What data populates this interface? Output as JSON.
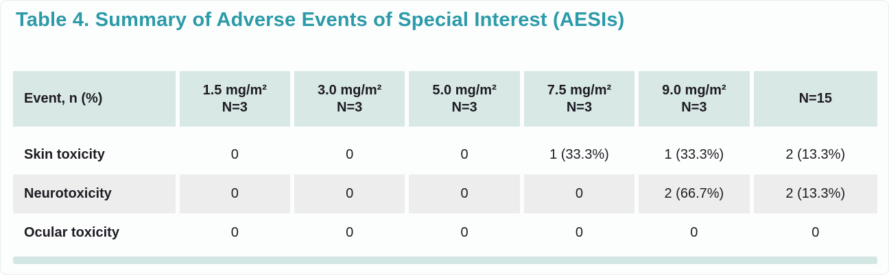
{
  "title": "Table 4. Summary of Adverse Events of Special Interest (AESIs)",
  "chart_data": {
    "type": "table",
    "title": "Table 4. Summary of Adverse Events of Special Interest (AESIs)",
    "columns": [
      {
        "label": "Event, n (%)",
        "sublabel": ""
      },
      {
        "label": "1.5 mg/m²",
        "sublabel": "N=3"
      },
      {
        "label": "3.0 mg/m²",
        "sublabel": "N=3"
      },
      {
        "label": "5.0 mg/m²",
        "sublabel": "N=3"
      },
      {
        "label": "7.5 mg/m²",
        "sublabel": "N=3"
      },
      {
        "label": "9.0 mg/m²",
        "sublabel": "N=3"
      },
      {
        "label": "N=15",
        "sublabel": ""
      }
    ],
    "rows": [
      {
        "event": "Skin toxicity",
        "values": [
          "0",
          "0",
          "0",
          "1 (33.3%)",
          "1 (33.3%)",
          "2 (13.3%)"
        ]
      },
      {
        "event": "Neurotoxicity",
        "values": [
          "0",
          "0",
          "0",
          "0",
          "2 (66.7%)",
          "2 (13.3%)"
        ]
      },
      {
        "event": "Ocular toxicity",
        "values": [
          "0",
          "0",
          "0",
          "0",
          "0",
          "0"
        ]
      }
    ],
    "layout_hints": {
      "alt_shaded_rows": [
        1
      ],
      "header_shaded": true,
      "grid": "off"
    }
  },
  "colors": {
    "title_text": "#2B9AA9",
    "header_cell_bg": "#D7E8E5",
    "alt_row_bg": "#EDEDED",
    "footer_bar_bg": "#D2E6E3",
    "body_text": "#1E1B22",
    "card_bg": "#FCFDFD"
  }
}
